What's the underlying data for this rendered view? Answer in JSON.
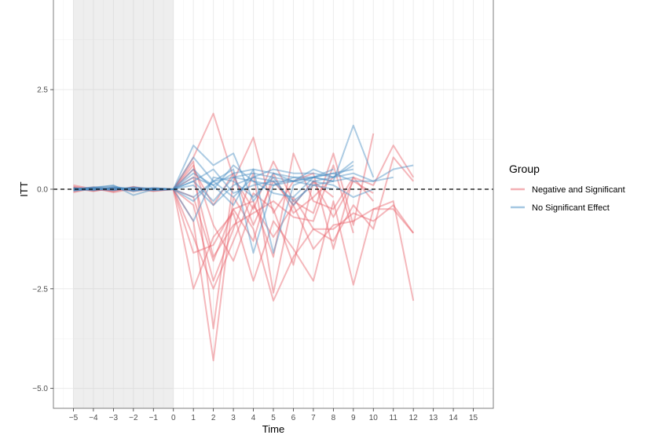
{
  "chart_data": {
    "type": "line",
    "title": "",
    "xlabel": "Time",
    "ylabel": "ITT",
    "xlim": [
      -6,
      16
    ],
    "ylim": [
      -5.5,
      4.75
    ],
    "x_ticks": [
      -5,
      -4,
      -3,
      -2,
      -1,
      0,
      1,
      2,
      3,
      4,
      5,
      6,
      7,
      8,
      9,
      10,
      11,
      12,
      13,
      14,
      15
    ],
    "x_tick_labels": [
      "−5",
      "−4",
      "−3",
      "−2",
      "−1",
      "0",
      "1",
      "2",
      "3",
      "4",
      "5",
      "6",
      "7",
      "8",
      "9",
      "10",
      "11",
      "12",
      "13",
      "14",
      "15"
    ],
    "y_ticks": [
      2.5,
      0,
      -2.5,
      -5
    ],
    "y_tick_labels": [
      "2.5",
      "0.0",
      "−2.5",
      "−5.0"
    ],
    "shaded_region": {
      "x": [
        -5,
        0
      ]
    },
    "reference_line": {
      "y": 0,
      "style": "dashed"
    },
    "grid": true,
    "legend": {
      "title": "Group",
      "placement": "right",
      "entries": [
        {
          "label": "Negative and Significant",
          "color": "#e8616a"
        },
        {
          "label": "No Significant Effect",
          "color": "#4a8fc4"
        }
      ]
    },
    "x_start": -5,
    "series": [
      {
        "group": 0,
        "values": [
          0.1,
          0.0,
          -0.05,
          0.05,
          -0.02,
          0,
          0.8,
          1.9,
          0.3,
          -0.5,
          0.7,
          -0.3,
          -0.6,
          0.9,
          -0.9,
          1.4
        ]
      },
      {
        "group": 0,
        "values": [
          -0.05,
          0.02,
          0.0,
          -0.03,
          0.02,
          0,
          -2.5,
          -1.2,
          -0.6,
          -2.3,
          -0.8,
          -1.5,
          -2.3,
          -0.3,
          -2.4,
          -0.5,
          -0.3,
          -2.8
        ]
      },
      {
        "group": 0,
        "values": [
          0.05,
          -0.03,
          0.02,
          0.0,
          -0.04,
          0,
          -0.8,
          -4.3,
          -0.2,
          -1.0,
          -2.8,
          -1.7,
          -1.0,
          -1.0,
          -0.6,
          -0.8,
          -0.4,
          -1.1
        ]
      },
      {
        "group": 0,
        "values": [
          -0.08,
          0.03,
          -0.02,
          0.04,
          0.0,
          0,
          0.7,
          -3.5,
          0.2,
          1.3,
          -0.6,
          0.2,
          0.4,
          -1.5,
          0.3,
          -0.3
        ]
      },
      {
        "group": 0,
        "values": [
          0.02,
          -0.05,
          0.03,
          -0.02,
          0.03,
          0,
          -1.6,
          -1.4,
          -0.5,
          -0.3,
          -1.7,
          0.9,
          -0.3,
          -0.5,
          0.3,
          0.1,
          1.1,
          0.3
        ]
      },
      {
        "group": 0,
        "values": [
          0.0,
          0.04,
          -0.08,
          0.02,
          -0.03,
          0,
          -0.4,
          -2.3,
          -1.0,
          0.4,
          -2.6,
          -0.2,
          -1.0,
          -1.3,
          -0.4,
          -1.0,
          0.8,
          0.2
        ]
      },
      {
        "group": 0,
        "values": [
          0.06,
          0.0,
          0.02,
          -0.05,
          0.01,
          0,
          0.3,
          -1.7,
          -0.9,
          -0.6,
          -0.3,
          -0.7,
          -0.8,
          0.6,
          -1.1
        ]
      },
      {
        "group": 0,
        "values": [
          -0.03,
          0.02,
          -0.04,
          0.06,
          -0.02,
          0,
          -1.2,
          -2.5,
          -1.3,
          -0.1,
          -0.5,
          -1.9,
          0.2,
          -0.2
        ]
      },
      {
        "group": 0,
        "values": [
          0.03,
          -0.02,
          0.05,
          -0.01,
          0.02,
          0,
          0.5,
          -0.4,
          0.4,
          -0.9,
          0.2,
          -0.4,
          0.2,
          -0.7,
          0.2,
          -0.1
        ]
      },
      {
        "group": 0,
        "values": [
          -0.02,
          0.05,
          0.0,
          0.02,
          -0.05,
          0,
          -0.2,
          -1.8,
          -0.5,
          -1.3,
          0.4,
          -0.6,
          -0.2,
          0.3
        ]
      },
      {
        "group": 0,
        "values": [
          0.04,
          -0.04,
          0.03,
          -0.03,
          0.0,
          0,
          0.6,
          -0.9,
          -1.8,
          -0.4,
          -1.2,
          -0.4,
          -1.5,
          -0.9,
          -0.8,
          -0.5,
          -0.5,
          -1.1
        ]
      },
      {
        "group": 1,
        "values": [
          0.0,
          0.05,
          0.08,
          -0.05,
          0.02,
          0,
          1.1,
          0.6,
          0.9,
          -0.3,
          0.4,
          0.2,
          0.3,
          0.2,
          1.6,
          0.3
        ]
      },
      {
        "group": 1,
        "values": [
          -0.02,
          0.03,
          0.1,
          -0.15,
          0.0,
          0,
          0.8,
          0.2,
          0.5,
          -1.6,
          0.1,
          0.2,
          0.5,
          0.3,
          0.6
        ]
      },
      {
        "group": 1,
        "values": [
          0.03,
          -0.02,
          0.04,
          0.02,
          -0.02,
          0,
          0.3,
          0.1,
          0.4,
          0.5,
          -1.6,
          0.1,
          0.3,
          0.5
        ]
      },
      {
        "group": 1,
        "values": [
          -0.04,
          0.02,
          0.0,
          0.03,
          0.01,
          0,
          -0.3,
          0.2,
          -0.2,
          0.3,
          0.5,
          0.4,
          0.4,
          0.3,
          0.4,
          0.2,
          0.5,
          0.6
        ]
      },
      {
        "group": 1,
        "values": [
          0.02,
          0.0,
          -0.03,
          0.05,
          -0.01,
          0,
          0.2,
          -0.3,
          0.3,
          0.4,
          0.3,
          0.2,
          0.3,
          0.4,
          0.2,
          0.2,
          0.3
        ]
      },
      {
        "group": 1,
        "values": [
          -0.01,
          0.04,
          0.02,
          -0.04,
          0.03,
          0,
          -0.8,
          0.3,
          0.2,
          -0.2,
          0.3,
          -0.4,
          0.2,
          0.1,
          -0.2,
          0.0
        ]
      },
      {
        "group": 1,
        "values": [
          0.03,
          -0.03,
          0.05,
          0.0,
          -0.03,
          0,
          0.5,
          0.0,
          0.6,
          0.2,
          0.1,
          0.3,
          0.2,
          0.3,
          0.7
        ]
      },
      {
        "group": 1,
        "values": [
          0.0,
          0.02,
          -0.02,
          0.04,
          0.02,
          0,
          0.1,
          -0.4,
          0.1,
          0.3,
          0.2,
          -0.3,
          0.1,
          0.2
        ]
      },
      {
        "group": 1,
        "values": [
          -0.03,
          0.0,
          0.03,
          -0.02,
          0.0,
          0,
          0.4,
          0.1,
          -0.4,
          0.5,
          0.4,
          0.3,
          0.3,
          0.4,
          0.5
        ]
      },
      {
        "group": 1,
        "values": [
          0.02,
          0.03,
          -0.01,
          0.02,
          -0.02,
          0,
          0.2,
          0.5,
          -0.1,
          0.1,
          0.2,
          0.2,
          0.1,
          0.0
        ]
      },
      {
        "group": 1,
        "values": [
          -0.02,
          -0.01,
          0.04,
          -0.03,
          0.03,
          0,
          -0.2,
          0.2,
          0.3,
          0.2,
          -0.1,
          -0.2,
          0.3,
          0.2,
          0.3
        ]
      }
    ]
  }
}
